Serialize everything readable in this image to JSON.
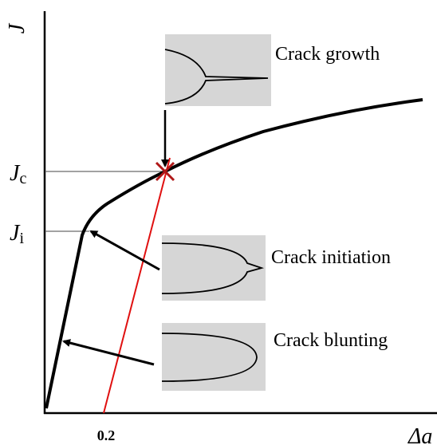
{
  "axes": {
    "y_label": "J",
    "x_label": "Δa",
    "x_tick": "0.2"
  },
  "levels": [
    {
      "main": "J",
      "sub": "c"
    },
    {
      "main": "J",
      "sub": "i"
    }
  ],
  "insets": [
    {
      "label": "Crack growth"
    },
    {
      "label": "Crack initiation"
    },
    {
      "label": "Crack blunting"
    }
  ]
}
